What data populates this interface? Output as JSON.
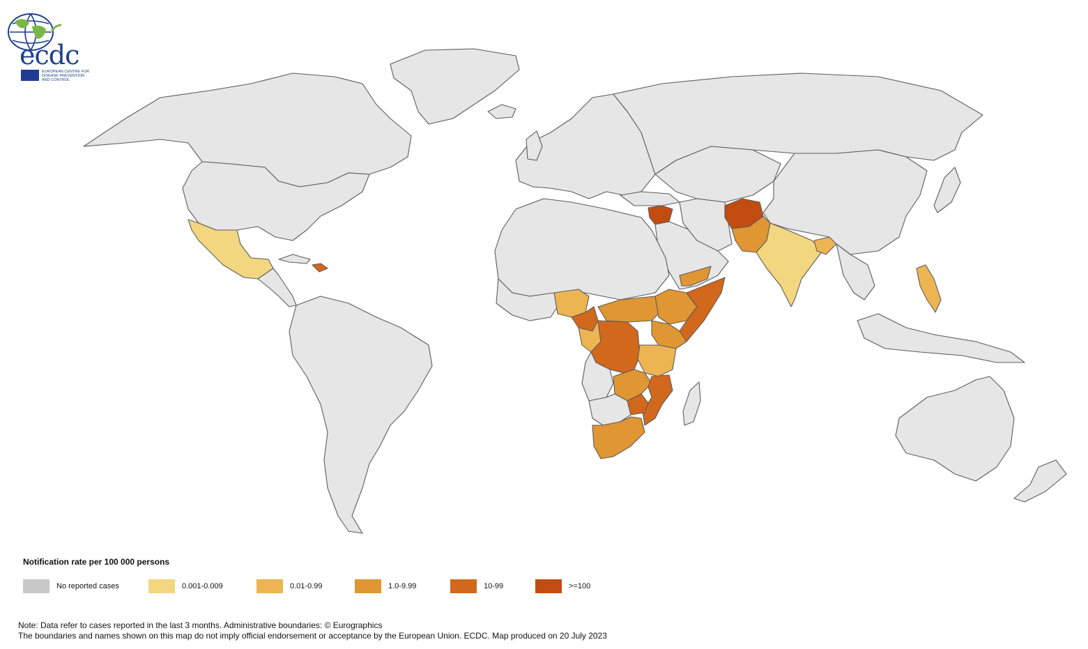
{
  "logo": {
    "text": "ecdc",
    "subtitle": "EUROPEAN CENTRE FOR DISEASE PREVENTION AND CONTROL"
  },
  "legend": {
    "title": "Notification rate per 100 000 persons",
    "items": [
      {
        "label": "No reported cases",
        "color": "#c8c8c8"
      },
      {
        "label": "0.001-0.009",
        "color": "#f2d680"
      },
      {
        "label": "0.01-0.99",
        "color": "#ecb552"
      },
      {
        "label": "1.0-9.99",
        "color": "#e09632"
      },
      {
        "label": "10-99",
        "color": "#d2681c"
      },
      {
        "label": ">=100",
        "color": "#c24c10"
      }
    ]
  },
  "notes": {
    "line1": "Note: Data refer to cases reported in the last 3 months. Administrative boundaries: © Eurographics",
    "line2": "The boundaries and names shown on this map do not imply official endorsement or acceptance by the European Union. ECDC. Map produced on 20 July 2023"
  },
  "colors": {
    "land": "#e6e6e6",
    "border": "#5c5c5c",
    "logo_blue": "#1e3f8a",
    "logo_green": "#7ab648"
  }
}
